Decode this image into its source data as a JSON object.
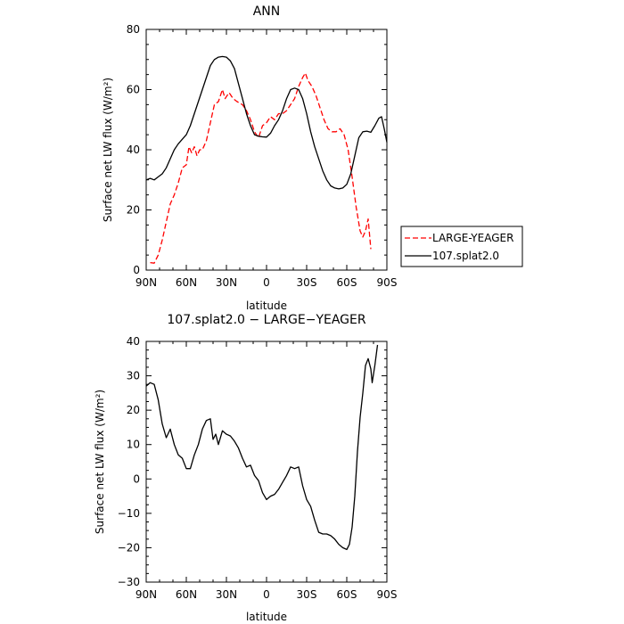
{
  "chart_data": [
    {
      "type": "line",
      "title": "ANN",
      "xlabel": "latitude",
      "ylabel": "Surface net LW flux (W/m²)",
      "x_ticks": [
        "90N",
        "60N",
        "30N",
        "0",
        "30S",
        "60S",
        "90S"
      ],
      "y_ticks": [
        0,
        20,
        40,
        60,
        80
      ],
      "xlim": [
        -90,
        90
      ],
      "ylim": [
        0,
        80
      ],
      "legend": {
        "placement": "right-outside",
        "entries": [
          "LARGE-YEAGER",
          "107.splat2.0"
        ]
      },
      "series": [
        {
          "name": "LARGE-YEAGER",
          "color": "#ff0000",
          "dash": "dashed",
          "points": [
            [
              -87,
              2.5
            ],
            [
              -84,
              2.3
            ],
            [
              -81,
              5
            ],
            [
              -78,
              10
            ],
            [
              -75,
              16
            ],
            [
              -72,
              22
            ],
            [
              -69,
              25
            ],
            [
              -66,
              29
            ],
            [
              -63,
              34
            ],
            [
              -60,
              35
            ],
            [
              -58,
              41
            ],
            [
              -56,
              39
            ],
            [
              -54,
              41
            ],
            [
              -52,
              38
            ],
            [
              -50,
              40
            ],
            [
              -48,
              40
            ],
            [
              -45,
              43
            ],
            [
              -42,
              49
            ],
            [
              -39,
              55
            ],
            [
              -36,
              56
            ],
            [
              -33,
              60
            ],
            [
              -31,
              57
            ],
            [
              -28,
              59
            ],
            [
              -25,
              57
            ],
            [
              -22,
              56
            ],
            [
              -18,
              55
            ],
            [
              -15,
              53
            ],
            [
              -12,
              50
            ],
            [
              -9,
              46
            ],
            [
              -6,
              44
            ],
            [
              -3,
              48
            ],
            [
              0,
              49
            ],
            [
              3,
              51
            ],
            [
              6,
              50
            ],
            [
              9,
              52
            ],
            [
              12,
              52
            ],
            [
              15,
              53
            ],
            [
              18,
              55
            ],
            [
              21,
              57
            ],
            [
              24,
              61
            ],
            [
              27,
              64
            ],
            [
              29,
              65.5
            ],
            [
              31,
              63
            ],
            [
              34,
              61
            ],
            [
              37,
              58
            ],
            [
              40,
              54
            ],
            [
              43,
              50
            ],
            [
              46,
              47
            ],
            [
              49,
              46
            ],
            [
              52,
              46
            ],
            [
              55,
              47
            ],
            [
              58,
              45
            ],
            [
              61,
              40
            ],
            [
              64,
              31
            ],
            [
              67,
              21
            ],
            [
              70,
              13
            ],
            [
              72,
              11
            ],
            [
              74,
              13
            ],
            [
              76,
              17
            ],
            [
              78,
              7
            ]
          ]
        },
        {
          "name": "107.splat2.0",
          "color": "#000000",
          "dash": "solid",
          "points": [
            [
              -90,
              30
            ],
            [
              -87,
              30.5
            ],
            [
              -84,
              30
            ],
            [
              -81,
              31
            ],
            [
              -78,
              32
            ],
            [
              -75,
              34
            ],
            [
              -72,
              37
            ],
            [
              -69,
              40
            ],
            [
              -66,
              42
            ],
            [
              -63,
              43.5
            ],
            [
              -60,
              45
            ],
            [
              -57,
              48
            ],
            [
              -54,
              52
            ],
            [
              -51,
              56
            ],
            [
              -48,
              60
            ],
            [
              -45,
              64
            ],
            [
              -42,
              68
            ],
            [
              -39,
              70
            ],
            [
              -36,
              70.8
            ],
            [
              -33,
              71
            ],
            [
              -30,
              70.8
            ],
            [
              -27,
              69.5
            ],
            [
              -24,
              67
            ],
            [
              -21,
              62
            ],
            [
              -18,
              57
            ],
            [
              -15,
              52
            ],
            [
              -12,
              48
            ],
            [
              -9,
              45
            ],
            [
              -6,
              44.5
            ],
            [
              -3,
              44.3
            ],
            [
              0,
              44.2
            ],
            [
              3,
              45.5
            ],
            [
              6,
              48
            ],
            [
              9,
              50
            ],
            [
              12,
              53
            ],
            [
              15,
              57
            ],
            [
              18,
              60
            ],
            [
              21,
              60.5
            ],
            [
              24,
              60
            ],
            [
              27,
              57
            ],
            [
              30,
              52
            ],
            [
              33,
              46
            ],
            [
              36,
              41
            ],
            [
              39,
              37
            ],
            [
              42,
              33
            ],
            [
              45,
              30
            ],
            [
              48,
              28
            ],
            [
              51,
              27.3
            ],
            [
              54,
              27
            ],
            [
              57,
              27.3
            ],
            [
              60,
              28.5
            ],
            [
              63,
              32
            ],
            [
              66,
              38
            ],
            [
              69,
              44
            ],
            [
              72,
              46
            ],
            [
              75,
              46.2
            ],
            [
              78,
              45.8
            ],
            [
              81,
              48
            ],
            [
              84,
              50.5
            ],
            [
              86,
              51
            ],
            [
              88,
              47
            ],
            [
              90,
              42.5
            ]
          ]
        }
      ]
    },
    {
      "type": "line",
      "title": "107.splat2.0 − LARGE−YEAGER",
      "xlabel": "latitude",
      "ylabel": "Surface net LW flux (W/m²)",
      "x_ticks": [
        "90N",
        "60N",
        "30N",
        "0",
        "30S",
        "60S",
        "90S"
      ],
      "y_ticks": [
        -30,
        -20,
        -10,
        0,
        10,
        20,
        30,
        40
      ],
      "xlim": [
        -90,
        90
      ],
      "ylim": [
        -30,
        40
      ],
      "series": [
        {
          "color": "#000000",
          "dash": "solid",
          "points": [
            [
              -90,
              27
            ],
            [
              -87,
              28
            ],
            [
              -84,
              27.5
            ],
            [
              -81,
              23
            ],
            [
              -78,
              16
            ],
            [
              -75,
              12
            ],
            [
              -72,
              14.5
            ],
            [
              -69,
              10
            ],
            [
              -66,
              7
            ],
            [
              -63,
              6
            ],
            [
              -60,
              3
            ],
            [
              -57,
              3
            ],
            [
              -54,
              7
            ],
            [
              -51,
              10
            ],
            [
              -48,
              14.5
            ],
            [
              -45,
              17
            ],
            [
              -42,
              17.5
            ],
            [
              -40,
              11.5
            ],
            [
              -38,
              13
            ],
            [
              -36,
              10
            ],
            [
              -33,
              14
            ],
            [
              -30,
              13
            ],
            [
              -27,
              12.5
            ],
            [
              -24,
              11
            ],
            [
              -21,
              9
            ],
            [
              -18,
              6
            ],
            [
              -15,
              3.5
            ],
            [
              -12,
              4
            ],
            [
              -9,
              1
            ],
            [
              -6,
              -0.5
            ],
            [
              -3,
              -4
            ],
            [
              0,
              -6
            ],
            [
              3,
              -5
            ],
            [
              6,
              -4.5
            ],
            [
              9,
              -3
            ],
            [
              12,
              -1
            ],
            [
              15,
              1
            ],
            [
              18,
              3.5
            ],
            [
              21,
              3
            ],
            [
              24,
              3.5
            ],
            [
              27,
              -2
            ],
            [
              30,
              -6
            ],
            [
              33,
              -8
            ],
            [
              36,
              -12
            ],
            [
              39,
              -15.5
            ],
            [
              42,
              -16
            ],
            [
              45,
              -16
            ],
            [
              48,
              -16.5
            ],
            [
              51,
              -17.5
            ],
            [
              54,
              -19
            ],
            [
              57,
              -20
            ],
            [
              60,
              -20.5
            ],
            [
              62,
              -19
            ],
            [
              64,
              -14
            ],
            [
              66,
              -5
            ],
            [
              68,
              8
            ],
            [
              70,
              18
            ],
            [
              72,
              25
            ],
            [
              74,
              33
            ],
            [
              76,
              35
            ],
            [
              78,
              32
            ],
            [
              79,
              28
            ],
            [
              81,
              33
            ],
            [
              83,
              39
            ]
          ]
        }
      ]
    }
  ]
}
